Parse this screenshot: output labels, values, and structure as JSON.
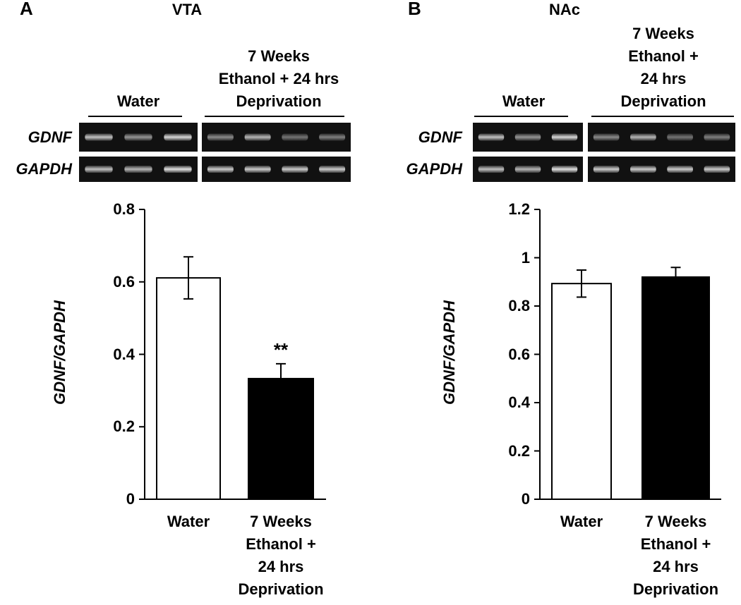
{
  "chart_data": [
    {
      "type": "bar",
      "panel": "A",
      "title": "VTA",
      "gel_groups": [
        "Water",
        "7 Weeks\nEthanol + 24 hrs\nDeprivation"
      ],
      "gel_rows": [
        "GDNF",
        "GAPDH"
      ],
      "ylabel": "GDNF/GAPDH",
      "categories": [
        "Water",
        "7 Weeks\nEthanol +\n24 hrs\nDeprivation"
      ],
      "values": [
        0.611,
        0.333
      ],
      "errors": [
        0.058,
        0.041
      ],
      "colors": [
        "#ffffff",
        "#000000"
      ],
      "annotation": "**",
      "ylim": [
        0,
        0.8
      ],
      "yticks": [
        0,
        0.2,
        0.4,
        0.6,
        0.8
      ]
    },
    {
      "type": "bar",
      "panel": "B",
      "title": "NAc",
      "gel_groups": [
        "Water",
        "7 Weeks\nEthanol + 24 hrs\nDeprivation"
      ],
      "gel_rows": [
        "GDNF",
        "GAPDH"
      ],
      "ylabel": "GDNF/GAPDH",
      "categories": [
        "Water",
        "7 Weeks\nEthanol +\n24 hrs\nDeprivation"
      ],
      "values": [
        0.893,
        0.92
      ],
      "errors": [
        0.056,
        0.04
      ],
      "colors": [
        "#ffffff",
        "#000000"
      ],
      "ylim": [
        0,
        1.2
      ],
      "yticks": [
        0,
        0.2,
        0.4,
        0.6,
        0.8,
        1,
        1.2
      ]
    }
  ]
}
